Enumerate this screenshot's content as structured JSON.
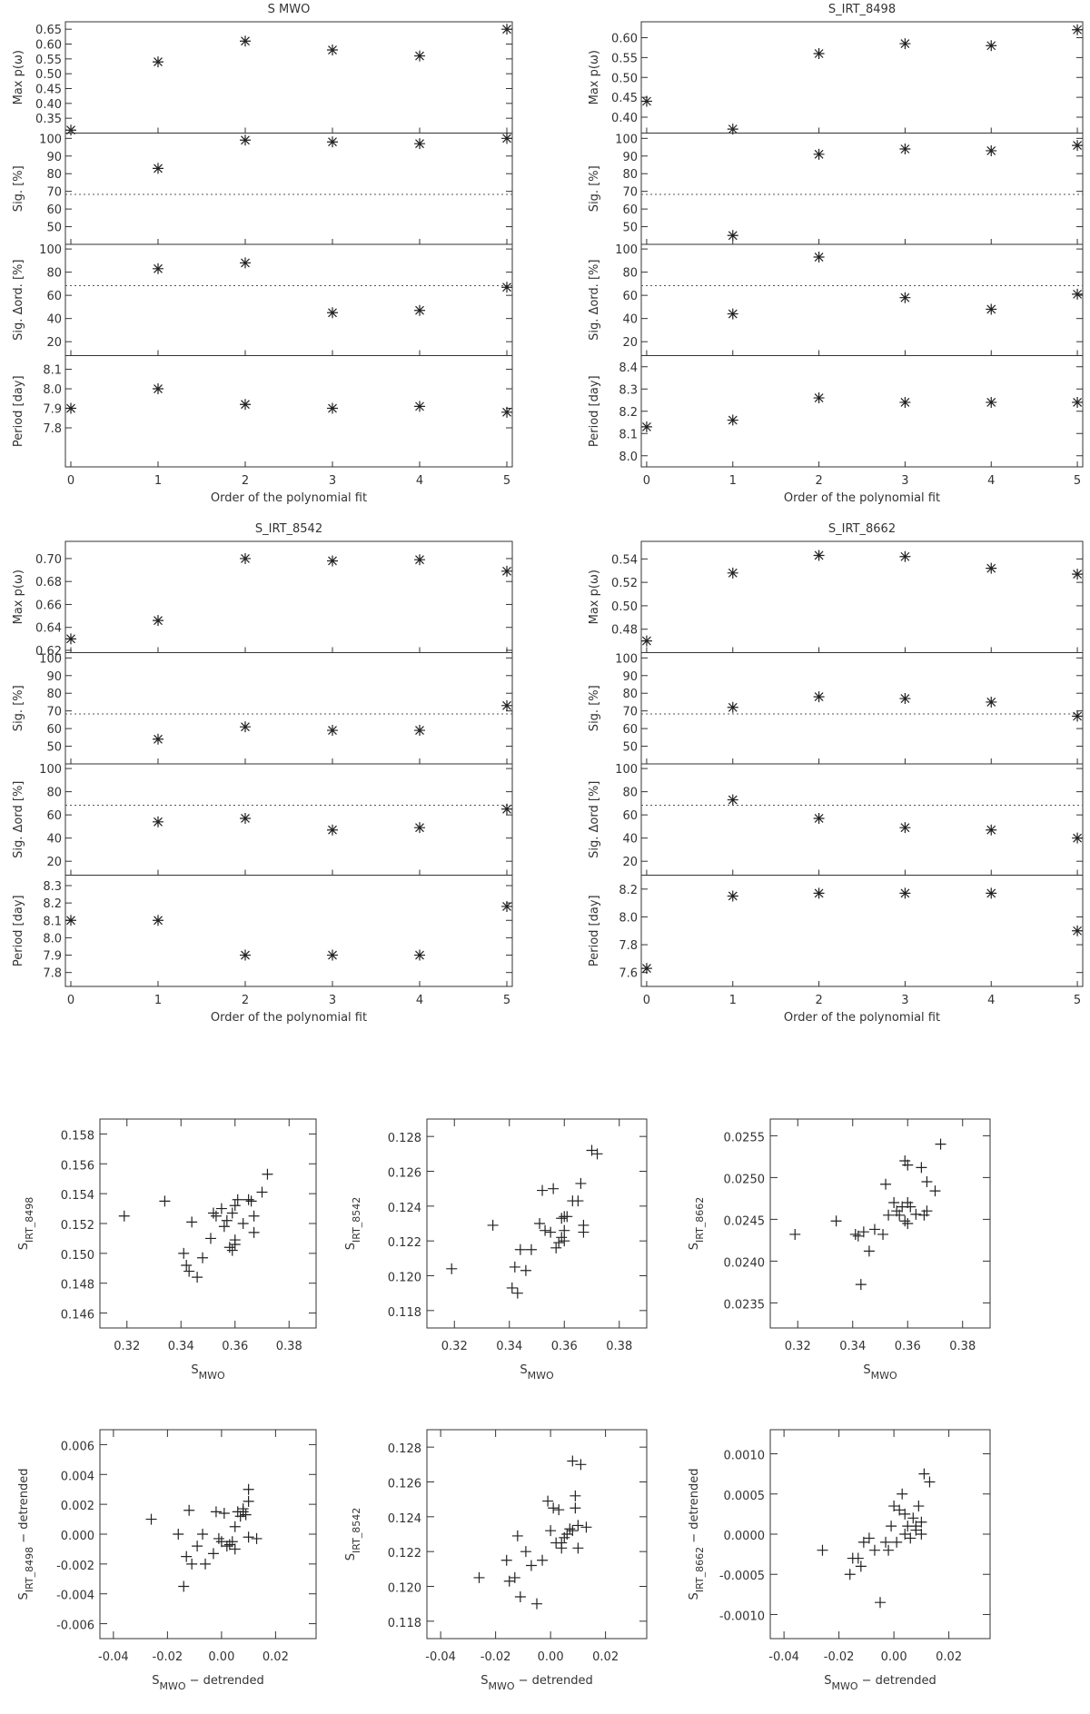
{
  "chart_data": [
    {
      "type": "stacked-scatter",
      "title": "S MWO",
      "xlabel": "Order of the polynomial fit",
      "x": [
        0,
        1,
        2,
        3,
        4,
        5
      ],
      "xlim": [
        -0.0625,
        5.0625
      ],
      "xticks": [
        0,
        1,
        2,
        3,
        4,
        5
      ],
      "subplots": [
        {
          "ylabel": "Max p(ω)",
          "ylim": [
            0.3,
            0.675
          ],
          "yticks": [
            0.35,
            {
              "value": 0.4,
              "label": "0.40"
            },
            0.45,
            {
              "value": 0.5,
              "label": "0.50"
            },
            0.55,
            {
              "value": 0.6,
              "label": "0.60"
            },
            0.65
          ],
          "values": [
            0.31,
            0.54,
            0.61,
            0.58,
            0.56,
            0.65
          ]
        },
        {
          "ylabel": "Sig. [%]",
          "ylim": [
            40,
            103
          ],
          "yticks": [
            50,
            60,
            70,
            80,
            90,
            100
          ],
          "reference_line": 68.3,
          "values": [
            null,
            83,
            99,
            98,
            97,
            100
          ]
        },
        {
          "ylabel": "Sig. Δord. [%]",
          "ylim": [
            8,
            104
          ],
          "yticks": [
            20,
            40,
            60,
            80,
            100
          ],
          "reference_line": 68.3,
          "values": [
            null,
            83,
            88,
            45,
            47,
            67
          ]
        },
        {
          "ylabel": "Period [day]",
          "ylim": [
            7.6,
            8.17
          ],
          "yticks": [
            7.8,
            7.9,
            {
              "value": 8,
              "label": "8.0"
            },
            8.1
          ],
          "values": [
            7.9,
            8.0,
            7.92,
            7.9,
            7.91,
            7.88
          ]
        }
      ]
    },
    {
      "type": "stacked-scatter",
      "title": "S_IRT_8498",
      "xlabel": "Order of the polynomial fit",
      "x": [
        0,
        1,
        2,
        3,
        4,
        5
      ],
      "xlim": [
        -0.0625,
        5.0625
      ],
      "xticks": [
        0,
        1,
        2,
        3,
        4,
        5
      ],
      "subplots": [
        {
          "ylabel": "Max p(ω)",
          "ylim": [
            0.36,
            0.64
          ],
          "yticks": [
            {
              "value": 0.4,
              "label": "0.40"
            },
            0.45,
            {
              "value": 0.5,
              "label": "0.50"
            },
            0.55,
            {
              "value": 0.6,
              "label": "0.60"
            }
          ],
          "values": [
            0.44,
            0.37,
            0.56,
            0.585,
            0.58,
            0.62
          ]
        },
        {
          "ylabel": "Sig. [%]",
          "ylim": [
            40,
            103
          ],
          "yticks": [
            50,
            60,
            70,
            80,
            90,
            100
          ],
          "reference_line": 68.3,
          "values": [
            null,
            45,
            91,
            94,
            93,
            96
          ]
        },
        {
          "ylabel": "Sig. Δord. [%]",
          "ylim": [
            8,
            104
          ],
          "yticks": [
            20,
            40,
            60,
            80,
            100
          ],
          "reference_line": 68.3,
          "values": [
            null,
            44,
            93,
            58,
            48,
            61
          ]
        },
        {
          "ylabel": "Period [day]",
          "ylim": [
            7.95,
            8.45
          ],
          "yticks": [
            {
              "value": 8,
              "label": "8.0"
            },
            8.1,
            8.2,
            8.3,
            8.4
          ],
          "values": [
            8.13,
            8.16,
            8.26,
            8.24,
            8.24,
            8.24
          ]
        }
      ]
    },
    {
      "type": "stacked-scatter",
      "title": "S_IRT_8542",
      "xlabel": "Order of the polynomial fit",
      "x": [
        0,
        1,
        2,
        3,
        4,
        5
      ],
      "xlim": [
        -0.0625,
        5.0625
      ],
      "xticks": [
        0,
        1,
        2,
        3,
        4,
        5
      ],
      "subplots": [
        {
          "ylabel": "Max p(ω)",
          "ylim": [
            0.618,
            0.715
          ],
          "yticks": [
            0.62,
            0.64,
            0.66,
            0.68,
            {
              "value": 0.7,
              "label": "0.70"
            }
          ],
          "values": [
            0.63,
            0.646,
            0.7,
            0.698,
            0.699,
            0.689
          ]
        },
        {
          "ylabel": "Sig. [%]",
          "ylim": [
            40,
            103
          ],
          "yticks": [
            50,
            60,
            70,
            80,
            90,
            100
          ],
          "reference_line": 68.3,
          "values": [
            null,
            54,
            61,
            59,
            59,
            73
          ]
        },
        {
          "ylabel": "Sig. Δord [%]",
          "ylim": [
            8,
            104
          ],
          "yticks": [
            20,
            40,
            60,
            80,
            100
          ],
          "reference_line": 68.3,
          "values": [
            null,
            54,
            57,
            47,
            49,
            65
          ]
        },
        {
          "ylabel": "Period [day]",
          "ylim": [
            7.72,
            8.36
          ],
          "yticks": [
            7.8,
            7.9,
            {
              "value": 8,
              "label": "8.0"
            },
            8.1,
            8.2,
            8.3
          ],
          "values": [
            8.1,
            8.1,
            7.9,
            7.9,
            7.9,
            8.18
          ]
        }
      ]
    },
    {
      "type": "stacked-scatter",
      "title": "S_IRT_8662",
      "xlabel": "Order of the polynomial fit",
      "x": [
        0,
        1,
        2,
        3,
        4,
        5
      ],
      "xlim": [
        -0.0625,
        5.0625
      ],
      "xticks": [
        0,
        1,
        2,
        3,
        4,
        5
      ],
      "subplots": [
        {
          "ylabel": "Max p(ω)",
          "ylim": [
            0.46,
            0.555
          ],
          "yticks": [
            0.48,
            {
              "value": 0.5,
              "label": "0.50"
            },
            0.52,
            0.54
          ],
          "values": [
            0.47,
            0.528,
            0.543,
            0.542,
            0.532,
            0.527
          ]
        },
        {
          "ylabel": "Sig. [%]",
          "ylim": [
            40,
            103
          ],
          "yticks": [
            50,
            60,
            70,
            80,
            90,
            100
          ],
          "reference_line": 68.3,
          "values": [
            null,
            72,
            78,
            77,
            75,
            67
          ]
        },
        {
          "ylabel": "Sig. Δord [%]",
          "ylim": [
            8,
            104
          ],
          "yticks": [
            20,
            40,
            60,
            80,
            100
          ],
          "reference_line": 68.3,
          "values": [
            null,
            73,
            57,
            49,
            47,
            40
          ]
        },
        {
          "ylabel": "Period [day]",
          "ylim": [
            7.5,
            8.3
          ],
          "yticks": [
            7.6,
            7.8,
            {
              "value": 8,
              "label": "8.0"
            },
            8.2
          ],
          "values": [
            7.63,
            8.15,
            8.17,
            8.17,
            8.17,
            7.9
          ]
        }
      ]
    },
    {
      "type": "scatter",
      "xlabel": [
        "S",
        "MWO"
      ],
      "ylabel": [
        "S",
        "IRT_8498"
      ],
      "xlim": [
        0.31,
        0.39
      ],
      "xticks": [
        0.32,
        0.34,
        0.36,
        0.38
      ],
      "ylim": [
        0.145,
        0.159
      ],
      "yticks": [
        0.146,
        0.148,
        {
          "value": 0.15,
          "label": "0.150"
        },
        0.152,
        0.154,
        0.156,
        0.158
      ],
      "x": [
        0.319,
        0.334,
        0.341,
        0.342,
        0.343,
        0.344,
        0.346,
        0.348,
        0.351,
        0.352,
        0.353,
        0.355,
        0.356,
        0.357,
        0.358,
        0.359,
        0.359,
        0.36,
        0.36,
        0.361,
        0.363,
        0.365,
        0.366,
        0.367,
        0.367,
        0.37,
        0.372,
        0.36
      ],
      "values": [
        0.1525,
        0.1535,
        0.15,
        0.1492,
        0.1488,
        0.1521,
        0.1484,
        0.1497,
        0.151,
        0.1527,
        0.1525,
        0.153,
        0.1518,
        0.1522,
        0.1504,
        0.1527,
        0.1502,
        0.1509,
        0.1506,
        0.1536,
        0.152,
        0.1536,
        0.1535,
        0.1525,
        0.1514,
        0.1541,
        0.1553,
        0.1532
      ]
    },
    {
      "type": "scatter",
      "xlabel": [
        "S",
        "MWO"
      ],
      "ylabel": [
        "S",
        "IRT_8542"
      ],
      "xlim": [
        0.31,
        0.39
      ],
      "xticks": [
        0.32,
        0.34,
        0.36,
        0.38
      ],
      "ylim": [
        0.117,
        0.129
      ],
      "yticks": [
        0.118,
        {
          "value": 0.12,
          "label": "0.120"
        },
        0.122,
        0.124,
        0.126,
        0.128
      ],
      "x": [
        0.319,
        0.334,
        0.341,
        0.342,
        0.343,
        0.344,
        0.346,
        0.348,
        0.351,
        0.352,
        0.353,
        0.355,
        0.356,
        0.357,
        0.358,
        0.359,
        0.359,
        0.36,
        0.36,
        0.361,
        0.363,
        0.365,
        0.366,
        0.367,
        0.367,
        0.37,
        0.372,
        0.36
      ],
      "values": [
        0.1204,
        0.1229,
        0.1193,
        0.1205,
        0.119,
        0.1215,
        0.1203,
        0.1215,
        0.123,
        0.1249,
        0.1226,
        0.1225,
        0.125,
        0.1216,
        0.1219,
        0.1233,
        0.1222,
        0.1226,
        0.122,
        0.1234,
        0.1243,
        0.1243,
        0.1253,
        0.1225,
        0.1229,
        0.1272,
        0.127,
        0.1234
      ]
    },
    {
      "type": "scatter",
      "xlabel": [
        "S",
        "MWO"
      ],
      "ylabel": [
        "S",
        "IRT_8662"
      ],
      "xlim": [
        0.31,
        0.39
      ],
      "xticks": [
        0.32,
        0.34,
        0.36,
        0.38
      ],
      "ylim": [
        0.0232,
        0.0257
      ],
      "yticks": [
        0.0235,
        {
          "value": 0.024,
          "label": "0.0240"
        },
        0.0245,
        {
          "value": 0.025,
          "label": "0.0250"
        },
        0.0255
      ],
      "x": [
        0.319,
        0.334,
        0.341,
        0.342,
        0.343,
        0.344,
        0.346,
        0.348,
        0.351,
        0.352,
        0.353,
        0.355,
        0.356,
        0.357,
        0.358,
        0.359,
        0.359,
        0.36,
        0.36,
        0.361,
        0.363,
        0.365,
        0.366,
        0.367,
        0.367,
        0.37,
        0.372,
        0.36
      ],
      "values": [
        0.02432,
        0.02448,
        0.02432,
        0.0243,
        0.02372,
        0.02435,
        0.02412,
        0.02438,
        0.02432,
        0.02492,
        0.02455,
        0.0247,
        0.0246,
        0.02455,
        0.02465,
        0.0252,
        0.02448,
        0.0247,
        0.02445,
        0.02465,
        0.02456,
        0.02512,
        0.02455,
        0.02495,
        0.0246,
        0.02484,
        0.0254,
        0.02515
      ]
    },
    {
      "type": "scatter",
      "xlabel": [
        "S",
        "MWO",
        " − detrended"
      ],
      "ylabel": [
        "S",
        "IRT_8498",
        " − detrended"
      ],
      "xlim": [
        -0.045,
        0.035
      ],
      "xticks": [
        -0.04,
        -0.02,
        {
          "value": 0,
          "label": "0.00"
        },
        0.02
      ],
      "ylim": [
        -0.007,
        0.007
      ],
      "yticks": [
        -0.006,
        -0.004,
        -0.002,
        {
          "value": 0,
          "label": "0.000"
        },
        0.002,
        0.004,
        0.006
      ],
      "x": [
        -0.026,
        -0.016,
        -0.014,
        -0.013,
        -0.012,
        -0.011,
        -0.009,
        -0.007,
        -0.006,
        -0.003,
        -0.002,
        -0.001,
        0.0,
        0.001,
        0.002,
        0.003,
        0.004,
        0.005,
        0.006,
        0.007,
        0.008,
        0.009,
        0.01,
        0.01,
        0.01,
        0.013,
        0.005,
        0.008
      ],
      "values": [
        0.001,
        0.0,
        -0.0035,
        -0.0015,
        0.0016,
        -0.002,
        -0.0008,
        0.0,
        -0.002,
        -0.0013,
        0.0015,
        -0.0003,
        -0.0005,
        0.0014,
        -0.0008,
        -0.0007,
        -0.0005,
        0.0005,
        0.0015,
        0.0012,
        0.0017,
        0.0013,
        0.0022,
        0.003,
        -0.0002,
        -0.0003,
        -0.001,
        0.0015
      ]
    },
    {
      "type": "scatter",
      "xlabel": [
        "S",
        "MWO",
        " − detrended"
      ],
      "ylabel": [
        "S",
        "IRT_8542"
      ],
      "xlim": [
        -0.045,
        0.035
      ],
      "xticks": [
        -0.04,
        -0.02,
        {
          "value": 0,
          "label": "0.00"
        },
        0.02
      ],
      "ylim": [
        0.117,
        0.129
      ],
      "yticks": [
        0.118,
        {
          "value": 0.12,
          "label": "0.120"
        },
        0.122,
        0.124,
        0.126,
        0.128
      ],
      "x": [
        -0.026,
        -0.016,
        -0.015,
        -0.013,
        -0.012,
        -0.011,
        -0.009,
        -0.007,
        -0.005,
        -0.003,
        -0.001,
        0.0,
        0.001,
        0.002,
        0.003,
        0.004,
        0.005,
        0.006,
        0.007,
        0.008,
        0.009,
        0.009,
        0.01,
        0.01,
        0.011,
        0.013,
        0.004,
        0.008
      ],
      "values": [
        0.1205,
        0.1215,
        0.1203,
        0.1205,
        0.1229,
        0.1194,
        0.122,
        0.1212,
        0.119,
        0.1215,
        0.1249,
        0.1232,
        0.1245,
        0.1225,
        0.1244,
        0.1222,
        0.1228,
        0.123,
        0.1233,
        0.1272,
        0.1245,
        0.1252,
        0.1222,
        0.1235,
        0.127,
        0.1234,
        0.1225,
        0.1232
      ]
    },
    {
      "type": "scatter",
      "xlabel": [
        "S",
        "MWO",
        " − detrended"
      ],
      "ylabel": [
        "S",
        "IRT_8662",
        " − detrended"
      ],
      "xlim": [
        -0.045,
        0.035
      ],
      "xticks": [
        -0.04,
        -0.02,
        {
          "value": 0,
          "label": "0.00"
        },
        0.02
      ],
      "ylim": [
        -0.0013,
        0.0013
      ],
      "yticks": [
        {
          "value": -0.001,
          "label": "-0.0010"
        },
        -0.0005,
        {
          "value": 0,
          "label": "0.0000"
        },
        0.0005,
        {
          "value": 0.001,
          "label": "0.0010"
        }
      ],
      "x": [
        -0.026,
        -0.016,
        -0.015,
        -0.013,
        -0.012,
        -0.011,
        -0.009,
        -0.007,
        -0.005,
        -0.003,
        -0.002,
        -0.001,
        0.0,
        0.001,
        0.002,
        0.003,
        0.004,
        0.005,
        0.006,
        0.007,
        0.008,
        0.009,
        0.01,
        0.01,
        0.011,
        0.013,
        0.004,
        0.008
      ],
      "values": [
        -0.0002,
        -0.0005,
        -0.0003,
        -0.0003,
        -0.0004,
        -0.0001,
        -5e-05,
        -0.0002,
        -0.00085,
        -0.0001,
        -0.0002,
        0.0001,
        0.00035,
        -0.0001,
        0.0003,
        0.0005,
        0.0,
        0.0001,
        -5e-05,
        0.0002,
        0.0001,
        0.00035,
        0.0,
        0.00015,
        0.00075,
        0.00065,
        0.00025,
        5e-05
      ]
    }
  ]
}
